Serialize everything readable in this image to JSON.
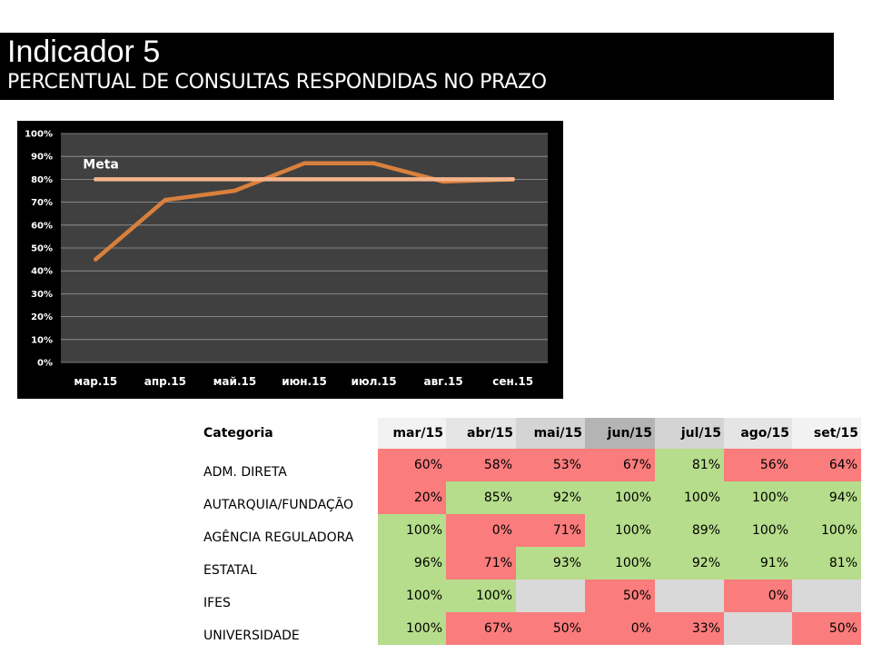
{
  "header": {
    "title": "Indicador 5",
    "subtitle": "PERCENTUAL DE CONSULTAS RESPONDIDAS NO PRAZO"
  },
  "chart_data": {
    "type": "line",
    "categories": [
      "мар.15",
      "апр.15",
      "май.15",
      "июн.15",
      "июл.15",
      "авг.15",
      "сен.15"
    ],
    "series": [
      {
        "name": "",
        "values": [
          45,
          71,
          75,
          87,
          87,
          79,
          80
        ],
        "color": "#d9803d"
      },
      {
        "name": "Meta",
        "values": [
          80,
          80,
          80,
          80,
          80,
          80,
          80
        ],
        "color": "#f5b48a"
      }
    ],
    "annotation": "Meta",
    "ylim": [
      0,
      100
    ],
    "yticks": [
      "0%",
      "10%",
      "20%",
      "30%",
      "40%",
      "50%",
      "60%",
      "70%",
      "80%",
      "90%",
      "100%"
    ],
    "grid": true,
    "plot_bg": "#404040"
  },
  "table": {
    "headers": [
      "Categoria",
      "mar/15",
      "abr/15",
      "mai/15",
      "jun/15",
      "jul/15",
      "ago/15",
      "set/15"
    ],
    "header_colors": [
      "#ffffff",
      "#f2f2f2",
      "#e5e5e5",
      "#d4d4d4",
      "#b4b4b4",
      "#d4d4d4",
      "#e5e5e5",
      "#f2f2f2"
    ],
    "rows": [
      {
        "label": "ADM. DIRETA",
        "cells": [
          "60%",
          "58%",
          "53%",
          "67%",
          "81%",
          "56%",
          "64%"
        ],
        "status": [
          "red",
          "red",
          "red",
          "red",
          "green",
          "red",
          "red"
        ]
      },
      {
        "label": "AUTARQUIA/FUNDAÇÃO",
        "cells": [
          "20%",
          "85%",
          "92%",
          "100%",
          "100%",
          "100%",
          "94%"
        ],
        "status": [
          "red",
          "green",
          "green",
          "green",
          "green",
          "green",
          "green"
        ]
      },
      {
        "label": "AGÊNCIA REGULADORA",
        "cells": [
          "100%",
          "0%",
          "71%",
          "100%",
          "89%",
          "100%",
          "100%"
        ],
        "status": [
          "green",
          "red",
          "red",
          "green",
          "green",
          "green",
          "green"
        ]
      },
      {
        "label": "ESTATAL",
        "cells": [
          "96%",
          "71%",
          "93%",
          "100%",
          "92%",
          "91%",
          "81%"
        ],
        "status": [
          "green",
          "red",
          "green",
          "green",
          "green",
          "green",
          "green"
        ]
      },
      {
        "label": "IFES",
        "cells": [
          "100%",
          "100%",
          "",
          "50%",
          "",
          "0%",
          ""
        ],
        "status": [
          "green",
          "green",
          "grey",
          "red",
          "grey",
          "red",
          "grey"
        ]
      },
      {
        "label": "UNIVERSIDADE",
        "cells": [
          "100%",
          "67%",
          "50%",
          "0%",
          "33%",
          "",
          "50%"
        ],
        "status": [
          "green",
          "red",
          "red",
          "red",
          "red",
          "grey",
          "red"
        ]
      }
    ]
  }
}
